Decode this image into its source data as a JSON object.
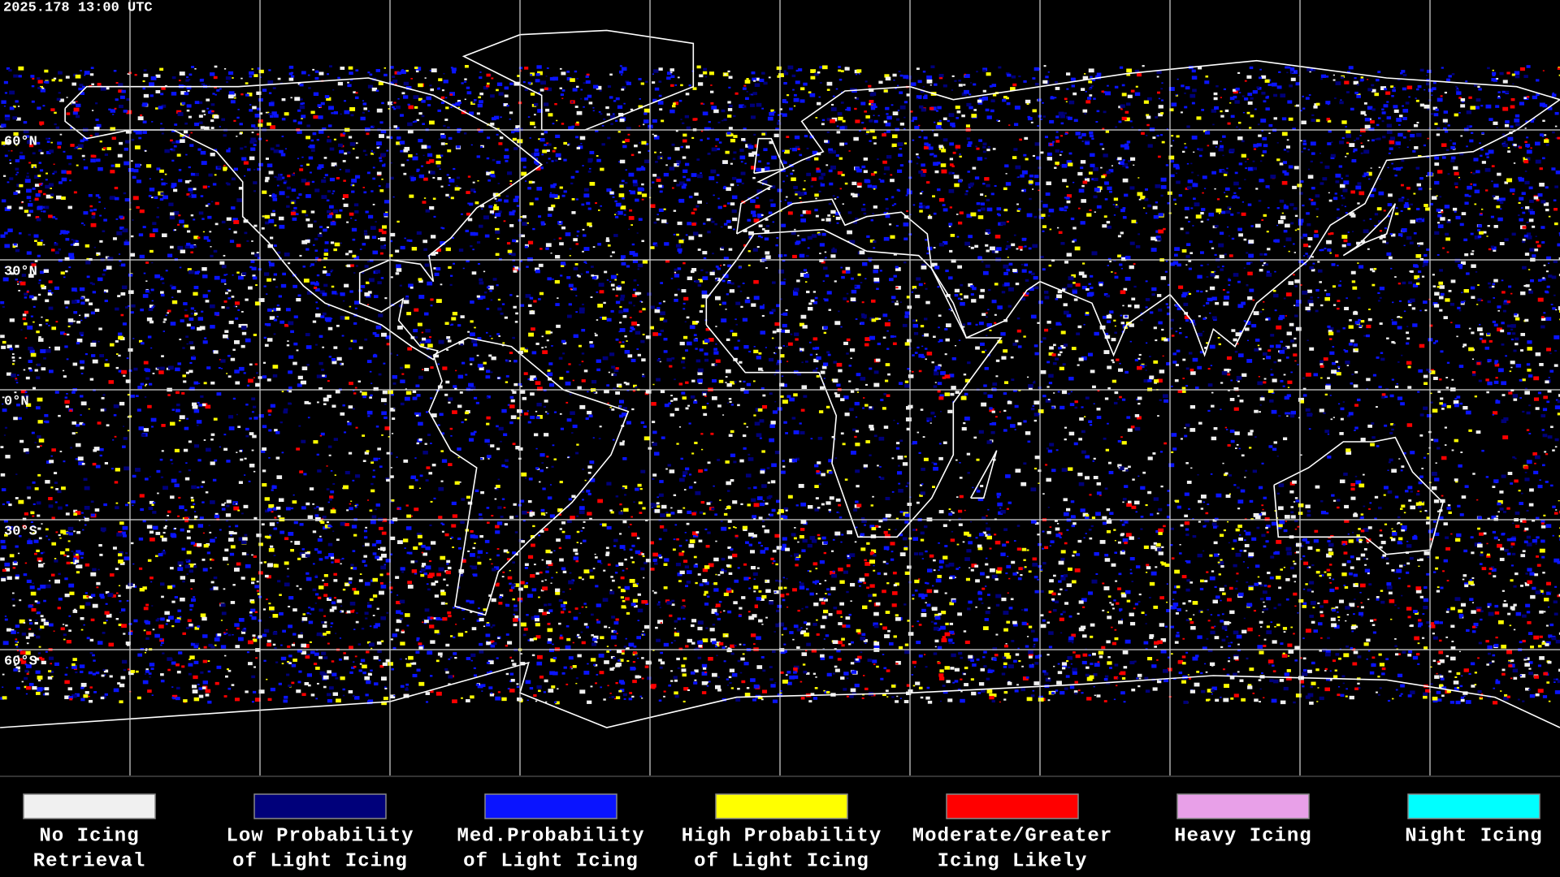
{
  "header": {
    "timestamp": "2025.178 13:00 UTC"
  },
  "map": {
    "lat_labels": [
      "60°N",
      "30°N",
      "0°N",
      "30°S",
      "60°S"
    ]
  },
  "legend": {
    "items": [
      {
        "lines": [
          "No Icing",
          "Retrieval"
        ],
        "color": "#f0f0f0"
      },
      {
        "lines": [
          "Low Probability",
          "of Light Icing"
        ],
        "color": "#00007a"
      },
      {
        "lines": [
          "Med.Probability",
          "of Light Icing"
        ],
        "color": "#0a14ff"
      },
      {
        "lines": [
          "High Probability",
          "of Light Icing"
        ],
        "color": "#ffff00"
      },
      {
        "lines": [
          "Moderate/Greater",
          "Icing Likely"
        ],
        "color": "#ff0000"
      },
      {
        "lines": [
          "Heavy Icing"
        ],
        "color": "#e8a0e8"
      },
      {
        "lines": [
          "Night Icing"
        ],
        "color": "#00ffff"
      }
    ]
  }
}
